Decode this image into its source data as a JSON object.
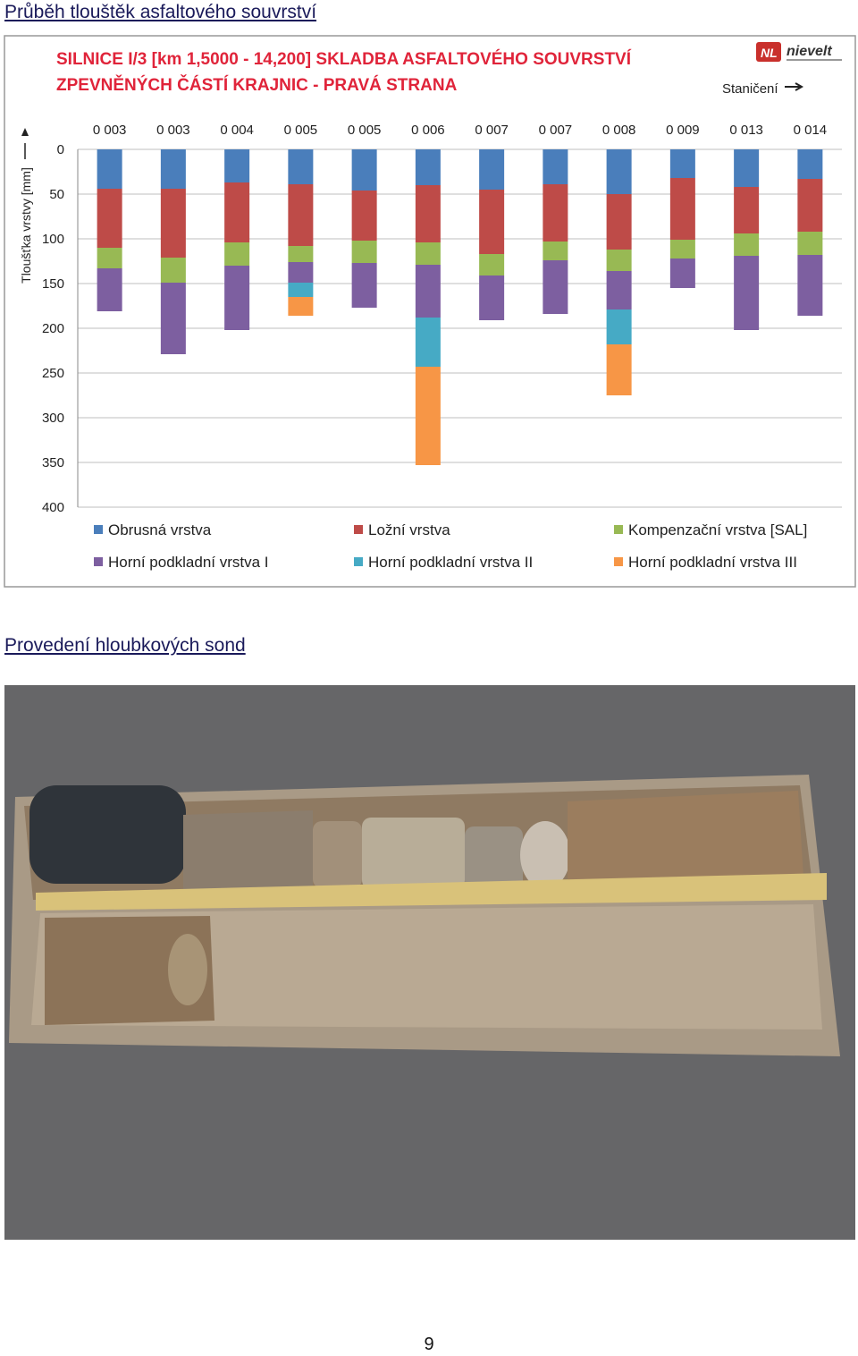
{
  "header": {
    "title": "Průběh tlouštěk asfaltového souvrství"
  },
  "chart_data": {
    "type": "bar",
    "stacked": true,
    "title": [
      "SILNICE  I/3 [km 1,5000 - 14,200]  SKLADBA ASFALTOVÉHO SOUVRSTVÍ",
      "ZPEVNĚNÝCH ČÁSTÍ KRAJNIC - PRAVÁ STRANA"
    ],
    "logo": "nievelt",
    "x_direction_label": "Staničení",
    "ylabel": "Tloušťka vrstvy [mm]",
    "categories": [
      "0 003",
      "0 003",
      "0 004",
      "0 005",
      "0 005",
      "0 006",
      "0 007",
      "0 007",
      "0 008",
      "0 009",
      "0 013",
      "0 014"
    ],
    "series": [
      {
        "name": "Obrusná vrstva",
        "color": "#4a7ebb",
        "values": [
          44,
          44,
          37,
          39,
          46,
          40,
          45,
          39,
          50,
          32,
          42,
          33
        ]
      },
      {
        "name": "Ložní vrstva",
        "color": "#be4b48",
        "values": [
          66,
          77,
          67,
          69,
          56,
          64,
          72,
          64,
          62,
          69,
          52,
          59
        ]
      },
      {
        "name": "Kompenzační vrstva [SAL]",
        "color": "#98b954",
        "values": [
          23,
          28,
          26,
          18,
          25,
          25,
          24,
          21,
          24,
          21,
          25,
          26
        ]
      },
      {
        "name": "Horní podkladní vrstva I",
        "color": "#7d5fa0",
        "values": [
          48,
          80,
          72,
          23,
          50,
          59,
          50,
          60,
          43,
          33,
          83,
          68
        ]
      },
      {
        "name": "Horní podkladní vrstva II",
        "color": "#46aac5",
        "values": [
          null,
          null,
          null,
          16,
          null,
          55,
          null,
          null,
          39,
          null,
          null,
          null
        ]
      },
      {
        "name": "Horní podkladní vrstva III",
        "color": "#f79646",
        "values": [
          null,
          null,
          null,
          21,
          null,
          110,
          null,
          null,
          57,
          null,
          null,
          null
        ]
      }
    ],
    "ylim": [
      0,
      400
    ],
    "yticks": [
      0,
      50,
      100,
      150,
      200,
      250,
      300,
      350,
      400
    ],
    "y_reversed": true,
    "grid": true,
    "legend": "bottom"
  },
  "photo_section": {
    "title": "Provedení hloubkových sond"
  },
  "footer": {
    "page_number": "9"
  }
}
